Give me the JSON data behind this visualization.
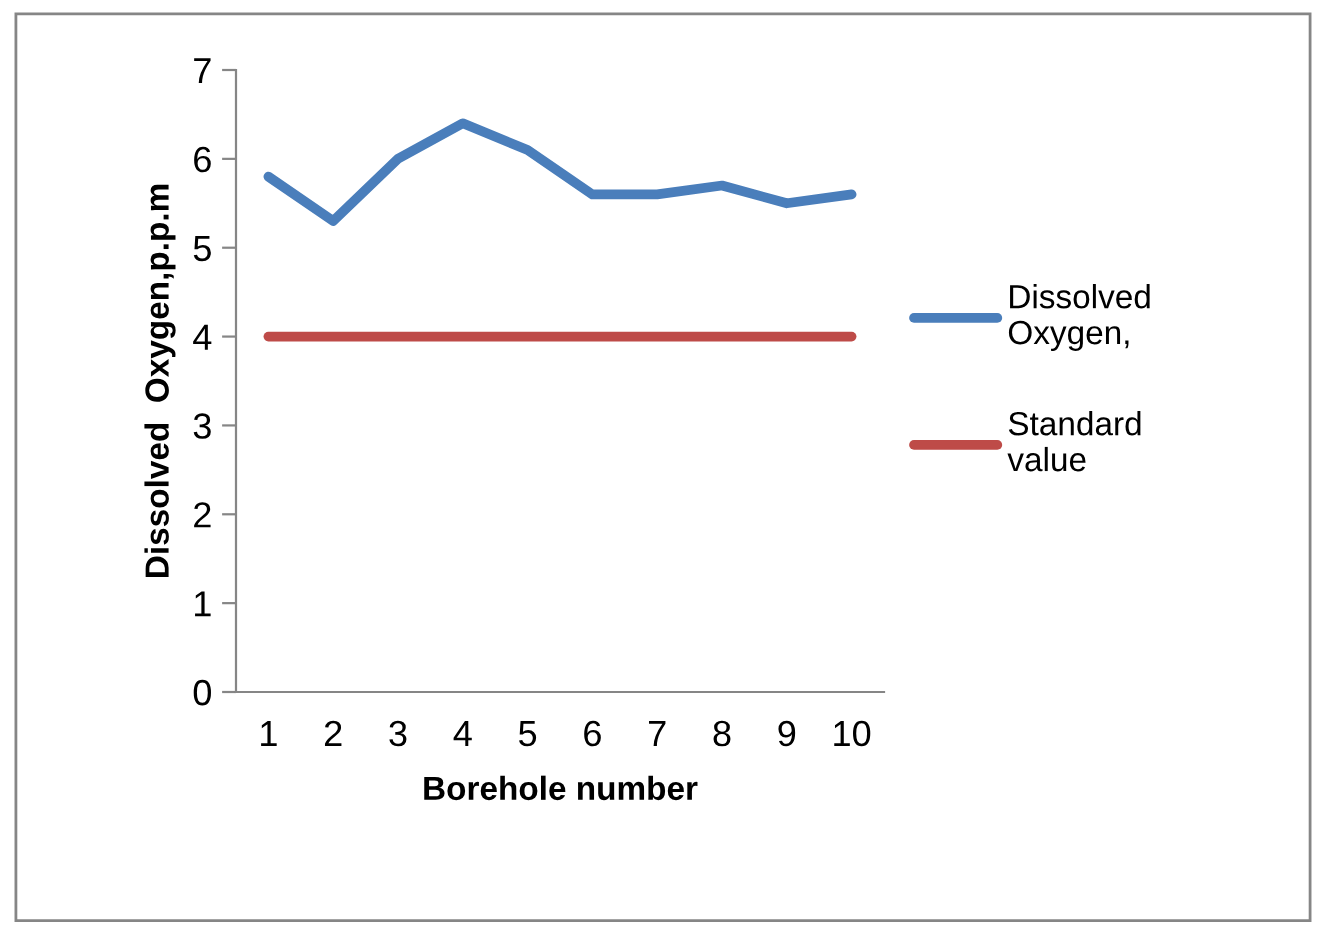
{
  "chart_data": {
    "type": "line",
    "xlabel": "Borehole number",
    "ylabel": "Dissolved  Oxygen,p.p.m",
    "categories": [
      "1",
      "2",
      "3",
      "4",
      "5",
      "6",
      "7",
      "8",
      "9",
      "10"
    ],
    "series": [
      {
        "name": "Dissolved Oxygen,",
        "color": "#4a7ebb",
        "values": [
          5.8,
          5.3,
          6.0,
          6.4,
          6.1,
          5.6,
          5.6,
          5.7,
          5.5,
          5.6
        ]
      },
      {
        "name": "Standard value",
        "color": "#be4b48",
        "values": [
          4,
          4,
          4,
          4,
          4,
          4,
          4,
          4,
          4,
          4
        ]
      }
    ],
    "ylim": [
      0,
      7
    ],
    "yticks": [
      0,
      1,
      2,
      3,
      4,
      5,
      6,
      7
    ],
    "grid": false,
    "legend": "right",
    "marker": "none",
    "line_style": "solid"
  }
}
